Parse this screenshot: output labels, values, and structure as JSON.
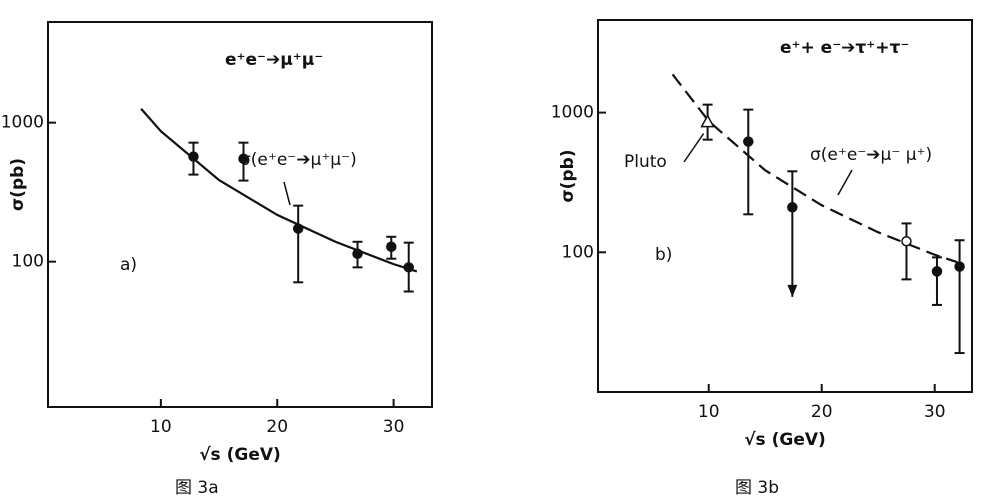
{
  "chart_data": [
    {
      "type": "scatter",
      "log_y": true,
      "xlim": [
        0.3,
        33.3
      ],
      "ylim": [
        9,
        5300
      ],
      "xticks": [
        10,
        20,
        30
      ],
      "yticks": [
        100,
        1000
      ],
      "xlabel": "√s (GeV)",
      "ylabel": "σ(pb)",
      "panel": "a)",
      "reaction": "e⁺e⁻➔μ⁺μ⁻",
      "curve_label": "σ(e⁺e⁻➔μ⁺μ⁻)",
      "caption": "图 3a",
      "x": [
        12.8,
        17.1,
        21.8,
        26.9,
        29.8,
        31.3
      ],
      "values": [
        570,
        550,
        173,
        114,
        128,
        91
      ],
      "lower": [
        423,
        383,
        71,
        91,
        105,
        61
      ],
      "upper": [
        718,
        718,
        253,
        139,
        151,
        137
      ],
      "markers": [
        "circle",
        "circle",
        "circle",
        "circle",
        "circle",
        "circle"
      ],
      "arrow": [
        false,
        false,
        false,
        false,
        false,
        false
      ],
      "curve": {
        "x": [
          8.3,
          10,
          15,
          20,
          25,
          30,
          32
        ],
        "y": [
          1260,
          868,
          386,
          217,
          139,
          96,
          85
        ],
        "dashed": false
      }
    },
    {
      "type": "scatter",
      "log_y": true,
      "xlim": [
        0.2,
        33.3
      ],
      "ylim": [
        10,
        4600
      ],
      "xticks": [
        10,
        20,
        30
      ],
      "yticks": [
        100,
        1000
      ],
      "xlabel": "√s (GeV)",
      "ylabel": "σ(pb)",
      "panel": "b)",
      "reaction": "e⁺+ e⁻➔τ⁺+τ⁻",
      "curve_label": "σ(e⁺e⁻➔μ⁻ μ⁺)",
      "note": "Pluto",
      "caption": "图 3b",
      "x": [
        9.9,
        13.5,
        17.4,
        27.5,
        30.2,
        32.2
      ],
      "values": [
        862,
        620,
        210,
        120,
        73,
        79
      ],
      "lower": [
        640,
        187,
        48,
        64,
        42,
        19
      ],
      "upper": [
        1140,
        1050,
        380,
        161,
        92,
        122
      ],
      "markers": [
        "triangle",
        "circle",
        "circle",
        "open-circle",
        "circle",
        "circle"
      ],
      "arrow": [
        false,
        false,
        true,
        false,
        false,
        false
      ],
      "curve": {
        "x": [
          6.8,
          10,
          15,
          20,
          25,
          30,
          32
        ],
        "y": [
          1877,
          868,
          386,
          217,
          139,
          96,
          85
        ],
        "dashed": true
      }
    }
  ]
}
